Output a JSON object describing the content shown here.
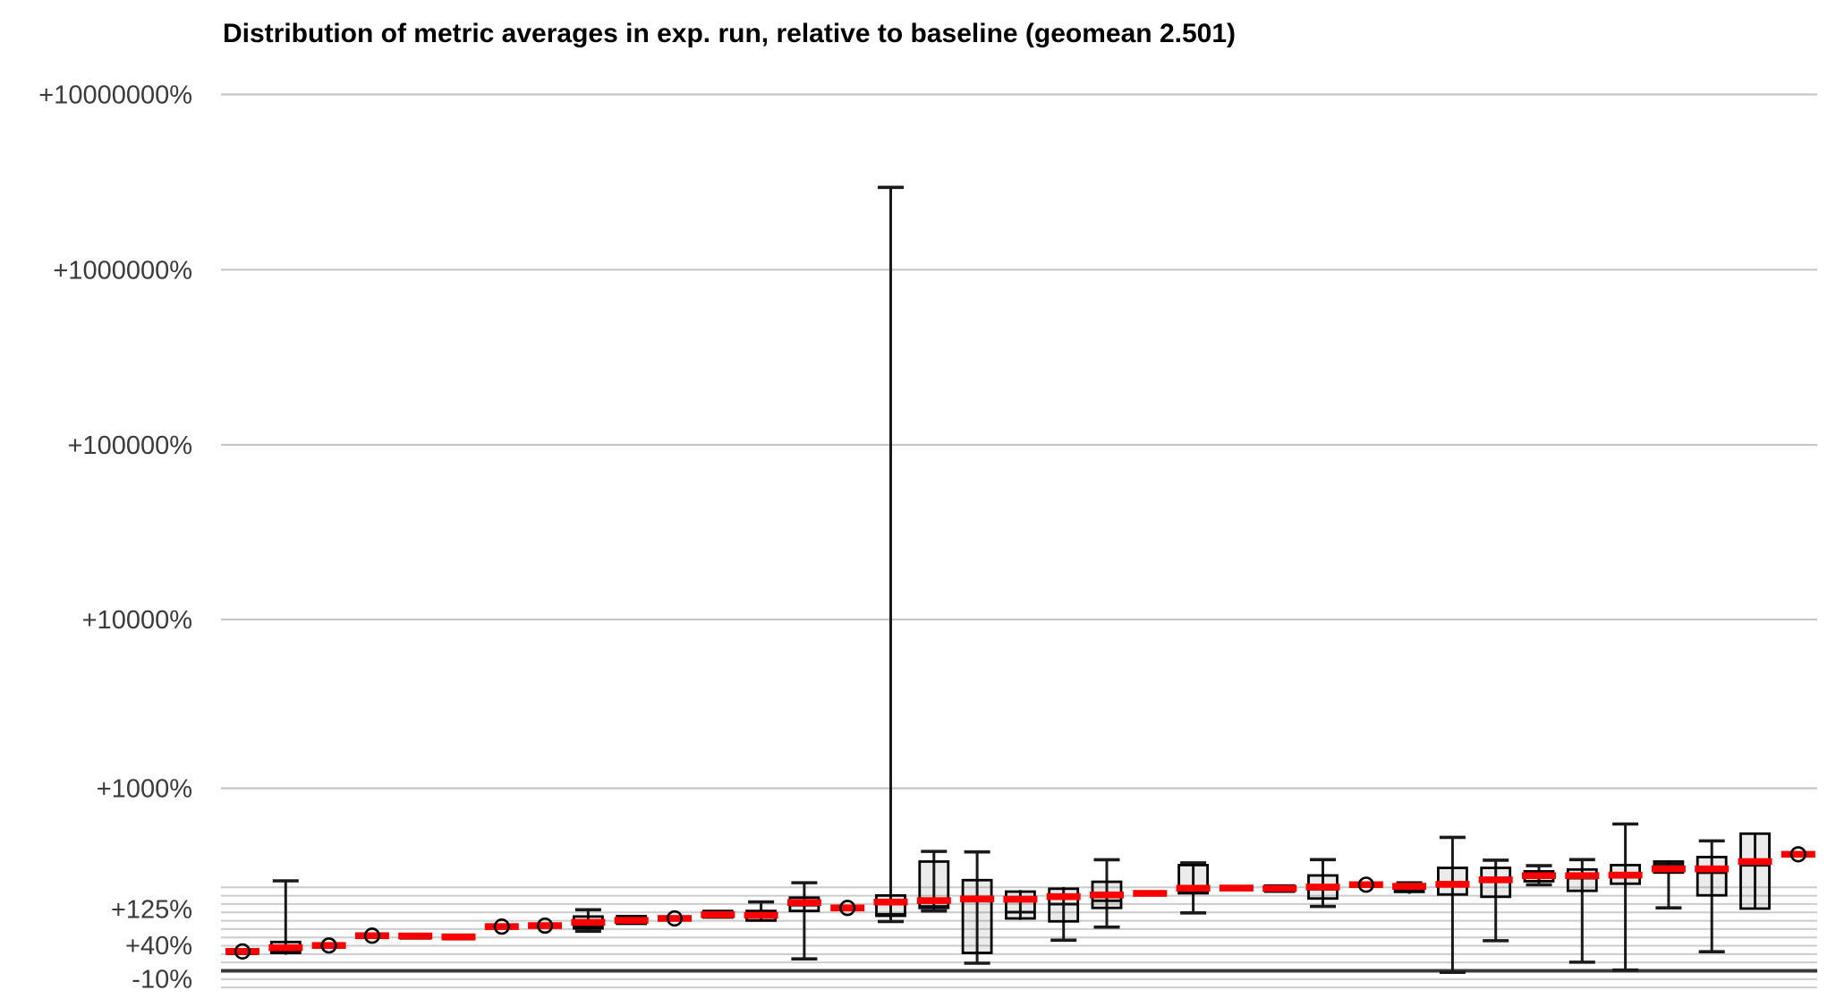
{
  "chart": {
    "title": "Distribution of metric averages in exp. run, relative to baseline (geomean 2.501)",
    "geomean": "2.501"
  },
  "chart_data": {
    "type": "boxplot",
    "title": "Distribution of metric averages in exp. run, relative to baseline (geomean 2.501)",
    "xlabel": "",
    "ylabel": "",
    "y_scale": "log of ratio (1 + pct/100), ticks shown as percent change vs baseline",
    "legend": "none",
    "grid": "horizontal only",
    "baseline_pct": 0,
    "major_ticks": [
      {
        "label": "+10000000%",
        "pct": 10000000
      },
      {
        "label": "+1000000%",
        "pct": 1000000
      },
      {
        "label": "+100000%",
        "pct": 100000
      },
      {
        "label": "+10000%",
        "pct": 10000
      },
      {
        "label": "+1000%",
        "pct": 1000
      }
    ],
    "labeled_minor_ticks": [
      {
        "label": "+125%",
        "pct": 125
      },
      {
        "label": "+40%",
        "pct": 40
      },
      {
        "label": "-10%",
        "pct": -10
      }
    ],
    "minor_gridlines_pct": [
      199.3,
      168.2,
      140.4,
      115.4,
      93.0,
      73.0,
      55.0,
      38.9,
      24.5,
      11.6,
      -10.4,
      -19.7
    ],
    "boxes": [
      {
        "lo": 25,
        "q1": 25,
        "med": 27,
        "q3": 31,
        "hi": 31,
        "mean": 29,
        "circle": true
      },
      {
        "lo": 23.5,
        "q1": 26.5,
        "med": 29,
        "q3": 46,
        "hi": 226,
        "mean": 35.5
      },
      {
        "lo": 37.5,
        "q1": 37.5,
        "med": 39.5,
        "q3": 42,
        "hi": 42,
        "mean": 39.5,
        "circle": true
      },
      {
        "lo": 56,
        "q1": 56,
        "med": 58.5,
        "q3": 61,
        "hi": 61,
        "mean": 58.6,
        "circle": true
      },
      {
        "lo": 53,
        "q1": 53,
        "med": 57.5,
        "q3": 62,
        "hi": 62,
        "mean": 58
      },
      {
        "lo": 51.5,
        "q1": 51.5,
        "med": 55.5,
        "q3": 60.5,
        "hi": 60.5,
        "mean": 56
      },
      {
        "lo": 76,
        "q1": 76,
        "med": 78.5,
        "q3": 81.5,
        "hi": 81.5,
        "mean": 78.7,
        "circle": true
      },
      {
        "lo": 78.5,
        "q1": 78.5,
        "med": 81,
        "q3": 84,
        "hi": 84,
        "mean": 81,
        "circle": true
      },
      {
        "lo": 68,
        "q1": 74.5,
        "med": 80,
        "q3": 104,
        "hi": 123,
        "mean": 89
      },
      {
        "lo": 85.5,
        "q1": 85.5,
        "med": 92,
        "q3": 105,
        "hi": 105,
        "mean": 94
      },
      {
        "lo": 96,
        "q1": 96,
        "med": 99,
        "q3": 102,
        "hi": 102,
        "mean": 99,
        "circle": true
      },
      {
        "lo": 101.5,
        "q1": 101.5,
        "med": 116,
        "q3": 119.5,
        "hi": 119.5,
        "mean": 109
      },
      {
        "lo": 90.5,
        "q1": 93.5,
        "med": 101.5,
        "q3": 119.5,
        "hi": 147,
        "mean": 107.5
      },
      {
        "lo": 17,
        "q1": 119.5,
        "med": 137,
        "q3": 161.5,
        "hi": 218,
        "mean": 145
      },
      {
        "lo": 125.5,
        "q1": 125.5,
        "med": 128.5,
        "q3": 132,
        "hi": 132,
        "mean": 128.4,
        "circle": true
      },
      {
        "lo": 91,
        "q1": 106,
        "med": 110,
        "q3": 169,
        "hi": 2950000,
        "mean": 146.7
      },
      {
        "lo": 119.5,
        "q1": 128.5,
        "med": 133,
        "q3": 320,
        "hi": 380,
        "mean": 151.5
      },
      {
        "lo": 10.5,
        "q1": 26.5,
        "med": 150,
        "q3": 229,
        "hi": 377,
        "mean": 157
      },
      {
        "lo": 95,
        "q1": 99,
        "med": 116,
        "q3": 183,
        "hi": 189,
        "mean": 156
      },
      {
        "lo": 49.5,
        "q1": 91.5,
        "med": 140,
        "q3": 194,
        "hi": 200.5,
        "mean": 165
      },
      {
        "lo": 77.5,
        "q1": 128.5,
        "med": 151,
        "q3": 222,
        "hi": 330,
        "mean": 171
      },
      {
        "lo": 174,
        "q1": 174,
        "med": 176.5,
        "q3": 179,
        "hi": 179,
        "mean": 176.5
      },
      {
        "lo": 114,
        "q1": 177,
        "med": 179,
        "q3": 301,
        "hi": 313,
        "mean": 196
      },
      {
        "lo": 194,
        "q1": 194,
        "med": 196,
        "q3": 199,
        "hi": 199,
        "mean": 196.5
      },
      {
        "lo": 183,
        "q1": 183,
        "med": 190,
        "q3": 206.5,
        "hi": 206.5,
        "mean": 195
      },
      {
        "lo": 133,
        "q1": 158.5,
        "med": 192,
        "q3": 250,
        "hi": 331,
        "mean": 200.5
      },
      {
        "lo": 206,
        "q1": 206,
        "med": 209.5,
        "q3": 214,
        "hi": 214,
        "mean": 210,
        "circle": true
      },
      {
        "lo": 175,
        "q1": 182,
        "med": 191.5,
        "q3": 209.5,
        "hi": 218,
        "mean": 203.5
      },
      {
        "lo": -2,
        "q1": 172.5,
        "med": 205,
        "q3": 286.5,
        "hi": 477,
        "mean": 211.5
      },
      {
        "lo": 48.5,
        "q1": 164.5,
        "med": 222,
        "q3": 286.5,
        "hi": 327.5,
        "mean": 230.5
      },
      {
        "lo": 209.5,
        "q1": 224.5,
        "med": 240,
        "q3": 269.5,
        "hi": 298,
        "mean": 249
      },
      {
        "lo": 12,
        "q1": 186,
        "med": 238,
        "q3": 278.5,
        "hi": 331,
        "mean": 249
      },
      {
        "lo": 1,
        "q1": 214,
        "med": 242,
        "q3": 301,
        "hi": 588,
        "mean": 251.5
      },
      {
        "lo": 128.5,
        "q1": 263.5,
        "med": 306,
        "q3": 320,
        "hi": 327,
        "mean": 281.5
      },
      {
        "lo": 28.5,
        "q1": 169.5,
        "med": 263,
        "q3": 345.5,
        "hi": 451,
        "mean": 281.5
      },
      {
        "lo": 126.5,
        "q1": 126.5,
        "med": 300,
        "q3": 506,
        "hi": 506,
        "mean": 320
      },
      {
        "lo": 356,
        "q1": 356,
        "med": 362,
        "q3": 368,
        "hi": 368,
        "mean": 362,
        "circle": true
      }
    ],
    "colors": {
      "mean_line": "#fa0000",
      "box_border": "#000000",
      "box_fill": "rgba(0,0,0,0.08)",
      "median_line": "#0d0d0d",
      "whisker": "#1a1a1a",
      "minor_gridline": "#cccccc",
      "major_gridline": "#c6c6c6",
      "baseline": "#3a3a3a",
      "tick_label": "#3b3b3b",
      "title": "#000000"
    }
  }
}
